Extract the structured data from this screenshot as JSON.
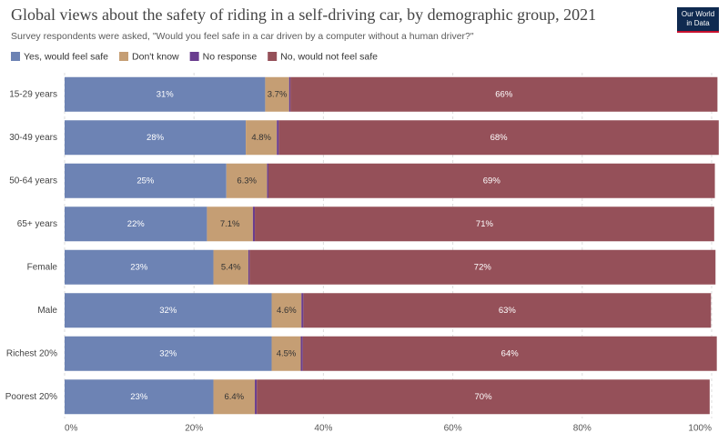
{
  "chart_data": {
    "type": "stacked-bar-horizontal",
    "title": "Global views about the safety of riding in a self-driving car, by demographic group, 2021",
    "subtitle": "Survey respondents were asked, \"Would you feel safe in a car driven by a computer without a human driver?\"",
    "logo": [
      "Our World",
      "in Data"
    ],
    "categories": [
      "15-29 years",
      "30-49 years",
      "50-64 years",
      "65+ years",
      "Female",
      "Male",
      "Richest 20%",
      "Poorest 20%"
    ],
    "series": [
      {
        "name": "Yes, would feel safe",
        "color": "#6d83b4",
        "values": [
          31,
          28,
          25,
          22,
          23,
          32,
          32,
          23
        ],
        "value_labels": [
          "31%",
          "28%",
          "25%",
          "22%",
          "23%",
          "32%",
          "32%",
          "23%"
        ]
      },
      {
        "name": "Don't know",
        "color": "#c59e74",
        "values": [
          3.7,
          4.8,
          6.3,
          7.1,
          5.4,
          4.6,
          4.5,
          6.4
        ],
        "value_labels": [
          "3.7%",
          "4.8%",
          "6.3%",
          "7.1%",
          "5.4%",
          "4.6%",
          "4.5%",
          "6.4%"
        ]
      },
      {
        "name": "No response",
        "color": "#6a3d8f",
        "values": [
          0.2,
          0.3,
          0.2,
          0.3,
          0.2,
          0.3,
          0.3,
          0.3
        ]
      },
      {
        "name": "No, would not feel safe",
        "color": "#955059",
        "values": [
          66,
          68,
          69,
          71,
          72,
          63,
          64,
          70
        ],
        "value_labels": [
          "66%",
          "68%",
          "69%",
          "71%",
          "72%",
          "63%",
          "64%",
          "70%"
        ]
      }
    ],
    "xlim": [
      0,
      100
    ],
    "xticks": [
      {
        "value": 0,
        "label": "0%"
      },
      {
        "value": 20,
        "label": "20%"
      },
      {
        "value": 40,
        "label": "40%"
      },
      {
        "value": 60,
        "label": "60%"
      },
      {
        "value": 80,
        "label": "80%"
      },
      {
        "value": 100,
        "label": "100%"
      }
    ],
    "grid": true
  }
}
